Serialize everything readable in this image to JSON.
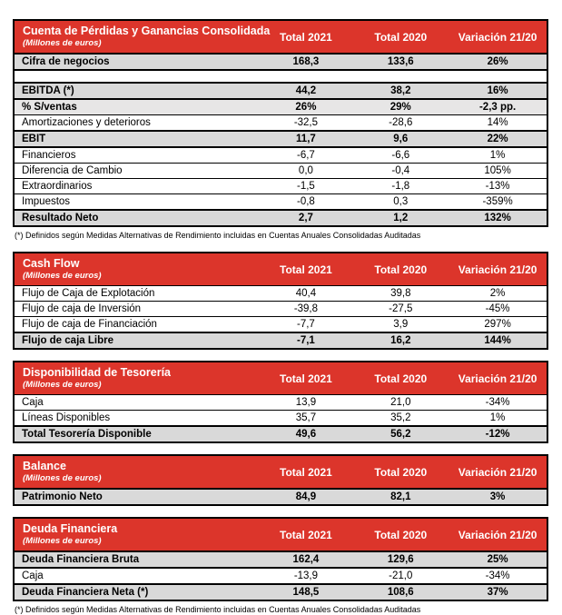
{
  "colors": {
    "header_red": "#DC352B",
    "header_text": "#FFFFFF",
    "row_gray": "#D9D9D9",
    "row_light_gray": "#E7E6E6",
    "border_black": "#000000"
  },
  "tables": [
    {
      "title": "Cuenta de Pérdidas y Ganancias Consolidada",
      "subtitle": "(Millones de euros)",
      "columns": [
        "Total 2021",
        "Total 2020",
        "Variación 21/20"
      ],
      "footnote": "(*) Definidos según Medidas Alternativas de Rendimiento incluidas en Cuentas Anuales Consolidadas Auditadas",
      "rows": [
        {
          "label": "Cifra de negocios",
          "values": [
            "168,3",
            "133,6",
            "26%"
          ],
          "style": "emphasis"
        },
        {
          "label": "",
          "values": [
            "",
            "",
            ""
          ],
          "style": "spacer"
        },
        {
          "label": "EBITDA (*)",
          "values": [
            "44,2",
            "38,2",
            "16%"
          ],
          "style": "emphasis"
        },
        {
          "label": "% S/ventas",
          "values": [
            "26%",
            "29%",
            "-2,3 pp."
          ],
          "style": "emphasis-light"
        },
        {
          "label": "Amortizaciones y deterioros",
          "values": [
            "-32,5",
            "-28,6",
            "14%"
          ],
          "style": "normal"
        },
        {
          "label": "EBIT",
          "values": [
            "11,7",
            "9,6",
            "22%"
          ],
          "style": "emphasis"
        },
        {
          "label": "Financieros",
          "values": [
            "-6,7",
            "-6,6",
            "1%"
          ],
          "style": "normal"
        },
        {
          "label": "Diferencia de Cambio",
          "values": [
            "0,0",
            "-0,4",
            "105%"
          ],
          "style": "normal"
        },
        {
          "label": "Extraordinarios",
          "values": [
            "-1,5",
            "-1,8",
            "-13%"
          ],
          "style": "normal"
        },
        {
          "label": "Impuestos",
          "values": [
            "-0,8",
            "0,3",
            "-359%"
          ],
          "style": "normal"
        },
        {
          "label": "Resultado Neto",
          "values": [
            "2,7",
            "1,2",
            "132%"
          ],
          "style": "emphasis"
        }
      ]
    },
    {
      "title": "Cash Flow",
      "subtitle": "(Millones de euros)",
      "columns": [
        "Total 2021",
        "Total 2020",
        "Variación 21/20"
      ],
      "rows": [
        {
          "label": "Flujo de Caja de Explotación",
          "values": [
            "40,4",
            "39,8",
            "2%"
          ],
          "style": "normal"
        },
        {
          "label": "Flujo de caja de Inversión",
          "values": [
            "-39,8",
            "-27,5",
            "-45%"
          ],
          "style": "normal"
        },
        {
          "label": "Flujo de caja de Financiación",
          "values": [
            "-7,7",
            "3,9",
            "297%"
          ],
          "style": "normal"
        },
        {
          "label": "Flujo de caja Libre",
          "values": [
            "-7,1",
            "16,2",
            "144%"
          ],
          "style": "emphasis"
        }
      ]
    },
    {
      "title": "Disponibilidad de Tesorería",
      "subtitle": "(Millones de euros)",
      "columns": [
        "Total 2021",
        "Total 2020",
        "Variación 21/20"
      ],
      "rows": [
        {
          "label": "Caja",
          "values": [
            "13,9",
            "21,0",
            "-34%"
          ],
          "style": "normal"
        },
        {
          "label": "Líneas Disponibles",
          "values": [
            "35,7",
            "35,2",
            "1%"
          ],
          "style": "normal"
        },
        {
          "label": "Total Tesorería Disponible",
          "values": [
            "49,6",
            "56,2",
            "-12%"
          ],
          "style": "emphasis"
        }
      ]
    },
    {
      "title": "Balance",
      "subtitle": "(Millones de euros)",
      "columns": [
        "Total 2021",
        "Total 2020",
        "Variación 21/20"
      ],
      "rows": [
        {
          "label": "Patrimonio Neto",
          "values": [
            "84,9",
            "82,1",
            "3%"
          ],
          "style": "emphasis"
        }
      ]
    },
    {
      "title": "Deuda Financiera",
      "subtitle": "(Millones de euros)",
      "columns": [
        "Total 2021",
        "Total 2020",
        "Variación 21/20"
      ],
      "footnote": "(*) Definidos según Medidas Alternativas de Rendimiento incluidas en Cuentas Anuales Consolidadas Auditadas",
      "rows": [
        {
          "label": "Deuda Financiera Bruta",
          "values": [
            "162,4",
            "129,6",
            "25%"
          ],
          "style": "emphasis"
        },
        {
          "label": "Caja",
          "values": [
            "-13,9",
            "-21,0",
            "-34%"
          ],
          "style": "normal"
        },
        {
          "label": "Deuda Financiera Neta (*)",
          "values": [
            "148,5",
            "108,6",
            "37%"
          ],
          "style": "emphasis"
        }
      ]
    }
  ]
}
